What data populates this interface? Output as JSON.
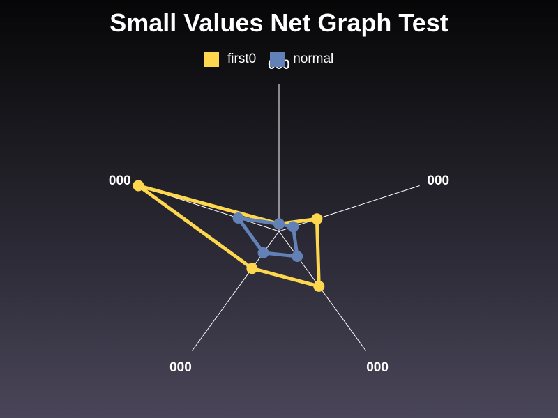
{
  "chart_data": {
    "type": "radar",
    "title": "Small Values Net Graph Test",
    "axes": [
      "000",
      "000",
      "000",
      "000",
      "000"
    ],
    "ylim": [
      0,
      1
    ],
    "grid": false,
    "legend_position": "top-center",
    "series": [
      {
        "name": "first0",
        "color": "#fdd84e",
        "values": [
          0.05,
          0.27,
          0.46,
          0.31,
          1.0
        ]
      },
      {
        "name": "normal",
        "color": "#6281b6",
        "values": [
          0.05,
          0.1,
          0.21,
          0.18,
          0.29
        ]
      }
    ]
  }
}
